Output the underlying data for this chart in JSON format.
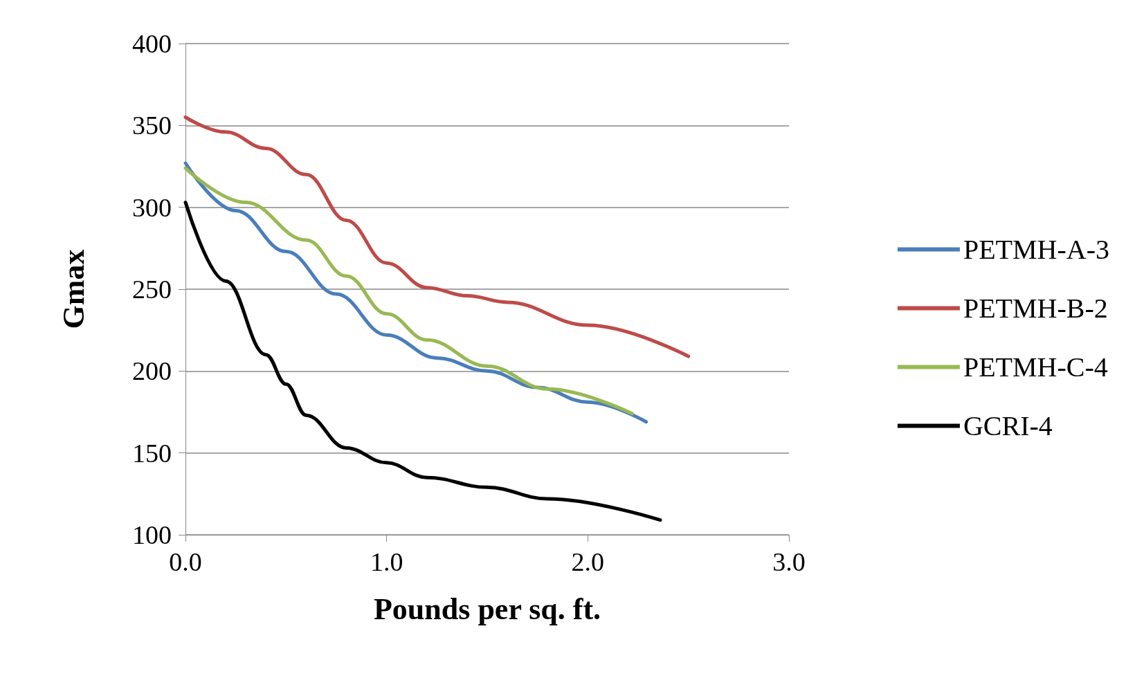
{
  "chart_data": {
    "type": "line",
    "xlabel": "Pounds per sq. ft.",
    "ylabel": "Gmax",
    "xlim": [
      0,
      3
    ],
    "xticks": [
      {
        "value": 0,
        "label": "0.0"
      },
      {
        "value": 1,
        "label": "1.0"
      },
      {
        "value": 2,
        "label": "2.0"
      },
      {
        "value": 3,
        "label": "3.0"
      }
    ],
    "ylim": [
      100,
      400
    ],
    "yticks": [
      100,
      150,
      200,
      250,
      300,
      350,
      400
    ],
    "grid": "y",
    "legend": "right",
    "marker": "none",
    "line_style": "solid",
    "series": [
      {
        "name": "PETMH-A-3",
        "color": "#4a7ebb",
        "x": [
          0,
          0.25,
          0.5,
          0.75,
          1.0,
          1.25,
          1.5,
          1.75,
          2.0,
          2.29
        ],
        "values": [
          327,
          298,
          273,
          247,
          222,
          208,
          200,
          190,
          181,
          169
        ]
      },
      {
        "name": "PETMH-B-2",
        "color": "#be4b48",
        "x": [
          0,
          0.2,
          0.4,
          0.6,
          0.8,
          1.0,
          1.2,
          1.4,
          1.6,
          2.0,
          2.5
        ],
        "values": [
          355,
          346,
          336,
          320,
          292,
          266,
          251,
          246,
          242,
          228,
          209
        ]
      },
      {
        "name": "PETMH-C-4",
        "color": "#98b954",
        "x": [
          0,
          0.3,
          0.6,
          0.8,
          1.0,
          1.2,
          1.5,
          1.8,
          2.22
        ],
        "values": [
          324,
          303,
          280,
          258,
          235,
          219,
          203,
          189,
          174
        ]
      },
      {
        "name": "GCRI-4",
        "color": "#000000",
        "x": [
          0,
          0.2,
          0.4,
          0.5,
          0.6,
          0.8,
          1.0,
          1.2,
          1.5,
          1.8,
          2.36
        ],
        "values": [
          303,
          255,
          210,
          192,
          173,
          153,
          144,
          135,
          129,
          122,
          109
        ]
      }
    ]
  }
}
